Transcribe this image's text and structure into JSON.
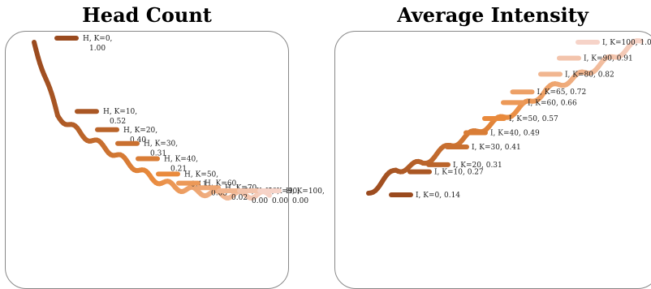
{
  "chart_data": [
    {
      "type": "line",
      "title": "Head Count",
      "labels": [
        {
          "series": "H",
          "k": 0,
          "value": 1.0
        },
        {
          "series": "H",
          "k": 10,
          "value": 0.52
        },
        {
          "series": "H",
          "k": 20,
          "value": 0.4
        },
        {
          "series": "H",
          "k": 30,
          "value": 0.31
        },
        {
          "series": "H",
          "k": 40,
          "value": 0.21
        },
        {
          "series": "H",
          "k": 50,
          "value": 0.11
        },
        {
          "series": "H",
          "k": 60,
          "value": 0.05
        },
        {
          "series": "H",
          "k": 70,
          "value": 0.02
        },
        {
          "series": "H",
          "k": 80,
          "value": 0.0
        },
        {
          "series": "H",
          "k": 90,
          "value": 0.0
        },
        {
          "series": "H",
          "k": 100,
          "value": 0.0
        }
      ]
    },
    {
      "type": "line",
      "title": "Average Intensity",
      "labels": [
        {
          "series": "I",
          "k": 0,
          "value": 0.14
        },
        {
          "series": "I",
          "k": 10,
          "value": 0.27
        },
        {
          "series": "I",
          "k": 20,
          "value": 0.31
        },
        {
          "series": "I",
          "k": 30,
          "value": 0.41
        },
        {
          "series": "I",
          "k": 40,
          "value": 0.49
        },
        {
          "series": "I",
          "k": 50,
          "value": 0.57
        },
        {
          "series": "I",
          "k": 60,
          "value": 0.66
        },
        {
          "series": "I",
          "k": 65,
          "value": 0.72
        },
        {
          "series": "I",
          "k": 80,
          "value": 0.82
        },
        {
          "series": "I",
          "k": 90,
          "value": 0.91
        },
        {
          "series": "I",
          "k": 100,
          "value": 1.0
        }
      ]
    }
  ]
}
